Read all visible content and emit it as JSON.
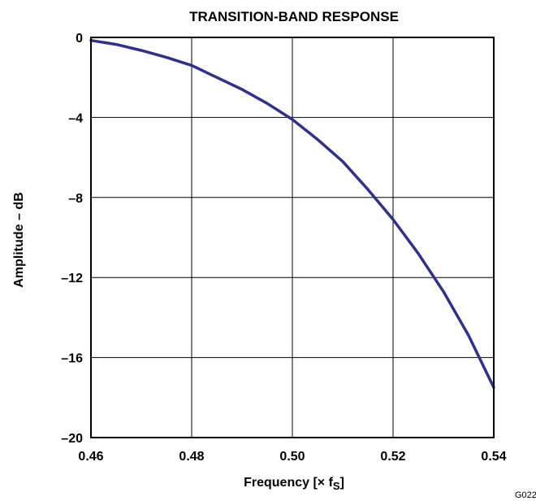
{
  "chart_data": {
    "type": "line",
    "title": "TRANSITION-BAND RESPONSE",
    "xlabel": "Frequency [× f",
    "xlabel_subscript": "S",
    "xlabel_suffix": "]",
    "ylabel": "Amplitude – dB",
    "xlim": [
      0.46,
      0.54
    ],
    "ylim": [
      -20,
      0
    ],
    "x_ticks": [
      0.46,
      0.48,
      0.5,
      0.52,
      0.54
    ],
    "x_tick_labels": [
      "0.46",
      "0.48",
      "0.50",
      "0.52",
      "0.54"
    ],
    "y_ticks": [
      0,
      -4,
      -8,
      -12,
      -16,
      -20
    ],
    "y_tick_labels": [
      "0",
      "–4",
      "–8",
      "–12",
      "–16",
      "–20"
    ],
    "grid": true,
    "series": [
      {
        "color": "#2e3192",
        "x": [
          0.46,
          0.465,
          0.47,
          0.475,
          0.48,
          0.485,
          0.49,
          0.495,
          0.5,
          0.505,
          0.51,
          0.515,
          0.52,
          0.525,
          0.53,
          0.535,
          0.54
        ],
        "y": [
          -0.15,
          -0.35,
          -0.65,
          -1.0,
          -1.4,
          -2.0,
          -2.6,
          -3.3,
          -4.1,
          -5.1,
          -6.2,
          -7.6,
          -9.1,
          -10.8,
          -12.7,
          -14.9,
          -17.5
        ]
      }
    ],
    "figure_code": "G022"
  }
}
